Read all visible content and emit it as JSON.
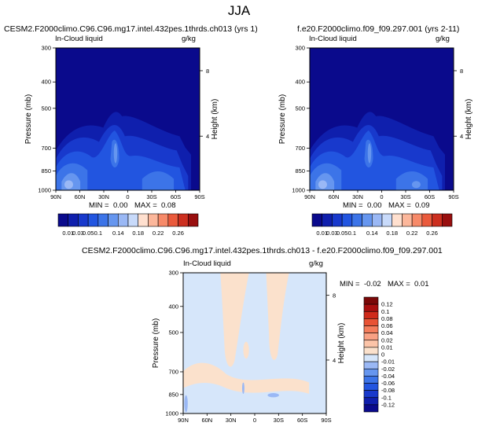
{
  "page_title": "JJA",
  "colors": {
    "seq": [
      "#0a0a8c",
      "#0f1fad",
      "#1839cc",
      "#2255e0",
      "#3c74e8",
      "#6696ef",
      "#9ab8f5",
      "#c8dafa",
      "#ffe0cf",
      "#fcb79b",
      "#f78a69",
      "#ea5a3c",
      "#cc2f1f",
      "#990f0f"
    ],
    "diff": [
      "#0a0a8c",
      "#0f1fad",
      "#1839cc",
      "#2255e0",
      "#3c74e8",
      "#6696ef",
      "#9ab8f5",
      "#d6e6fa",
      "#fbe1cc",
      "#fcc4a8",
      "#f9a184",
      "#f47d5c",
      "#e85335",
      "#cf2a1a",
      "#a80f0f",
      "#7a0808"
    ]
  },
  "chart_data": [
    {
      "type": "heatmap",
      "id": "panel1",
      "title": "CESM2.F2000climo.C96.C96.mg17.intel.432pes.1thrds.ch013 (yrs 1)",
      "left_label": "In-Cloud liquid",
      "right_label": "g/kg",
      "ylabel": "Pressure (mb)",
      "ylabel_right": "Height (km)",
      "x_ticks": [
        "90N",
        "60N",
        "30N",
        "0",
        "30S",
        "60S",
        "90S"
      ],
      "y_ticks": [
        300,
        400,
        500,
        700,
        850,
        1000
      ],
      "height_ticks": [
        8,
        4
      ],
      "ylim": [
        300,
        1000
      ],
      "min_label": "MIN =",
      "min_value": "0.00",
      "max_label": "MAX =",
      "max_value": "0.08",
      "colorbar_levels": [
        "0.01",
        "0.03",
        "0.05",
        "0.1",
        "0.14",
        "0.18",
        "0.22",
        "0.26"
      ]
    },
    {
      "type": "heatmap",
      "id": "panel2",
      "title": "f.e20.F2000climo.f09_f09.297.001 (yrs 2-11)",
      "left_label": "In-Cloud liquid",
      "right_label": "g/kg",
      "ylabel": "Pressure (mb)",
      "ylabel_right": "Height (km)",
      "x_ticks": [
        "90N",
        "60N",
        "30N",
        "0",
        "30S",
        "60S",
        "90S"
      ],
      "y_ticks": [
        300,
        400,
        500,
        700,
        850,
        1000
      ],
      "height_ticks": [
        8,
        4
      ],
      "ylim": [
        300,
        1000
      ],
      "min_label": "MIN =",
      "min_value": "0.00",
      "max_label": "MAX =",
      "max_value": "0.09",
      "colorbar_levels": [
        "0.01",
        "0.03",
        "0.05",
        "0.1",
        "0.14",
        "0.18",
        "0.22",
        "0.26"
      ]
    },
    {
      "type": "heatmap",
      "id": "diff",
      "title": "CESM2.F2000climo.C96.C96.mg17.intel.432pes.1thrds.ch013 - f.e20.F2000climo.f09_f09.297.001",
      "left_label": "In-Cloud liquid",
      "right_label": "g/kg",
      "ylabel": "Pressure (mb)",
      "ylabel_right": "Height (km)",
      "x_ticks": [
        "90N",
        "60N",
        "30N",
        "0",
        "30S",
        "60S",
        "90S"
      ],
      "y_ticks": [
        300,
        400,
        500,
        700,
        850,
        1000
      ],
      "height_ticks": [
        8,
        4
      ],
      "ylim": [
        300,
        1000
      ],
      "min_label": "MIN =",
      "min_value": "-0.02",
      "max_label": "MAX =",
      "max_value": "0.01",
      "colorbar_levels": [
        "0.12",
        "0.1",
        "0.08",
        "0.06",
        "0.04",
        "0.02",
        "0.01",
        "0",
        "-0.01",
        "-0.02",
        "-0.04",
        "-0.06",
        "-0.08",
        "-0.1",
        "-0.12"
      ]
    }
  ]
}
